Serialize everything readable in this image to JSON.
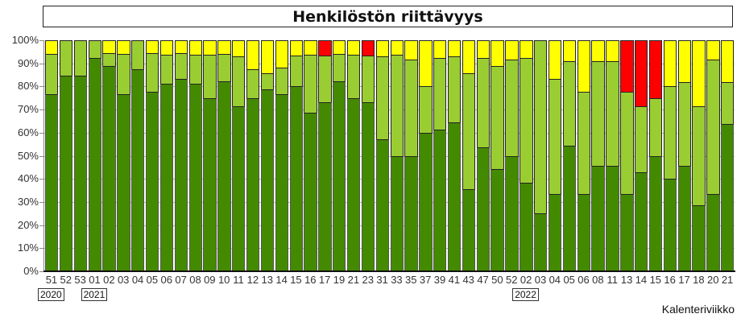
{
  "chart_data": {
    "type": "bar",
    "stacked": true,
    "title": "Henkilöstön riittävyys",
    "xlabel": "Kalenteriviikko",
    "ylabel": "",
    "ylim": [
      0,
      100
    ],
    "yticks": [
      "0%",
      "10%",
      "20%",
      "30%",
      "40%",
      "50%",
      "60%",
      "70%",
      "80%",
      "90%",
      "100%"
    ],
    "categories": [
      "51",
      "52",
      "53",
      "01",
      "02",
      "03",
      "04",
      "05",
      "06",
      "07",
      "08",
      "09",
      "10",
      "11",
      "12",
      "13",
      "14",
      "15",
      "16",
      "17",
      "19",
      "21",
      "23",
      "31",
      "33",
      "35",
      "37",
      "39",
      "41",
      "43",
      "47",
      "50",
      "52",
      "02",
      "03",
      "04",
      "05",
      "06",
      "08",
      "11",
      "13",
      "14",
      "15",
      "16",
      "17",
      "18",
      "20",
      "21"
    ],
    "year_markers": [
      {
        "label": "2020",
        "index": 0
      },
      {
        "label": "2021",
        "index": 3
      },
      {
        "label": "2022",
        "index": 33
      }
    ],
    "series": [
      {
        "name": "dark green",
        "color": "#448a00",
        "values": [
          76.5,
          84.6,
          84.6,
          92.3,
          88.9,
          76.5,
          87.5,
          77.8,
          81.2,
          83.3,
          81.2,
          75,
          82.4,
          71.4,
          75,
          78.6,
          76.5,
          80,
          68.8,
          73.3,
          82.4,
          75,
          73.3,
          57.1,
          50,
          50,
          60,
          61.5,
          64.3,
          35.7,
          53.8,
          44.4,
          50,
          38.5,
          25,
          33.3,
          54.5,
          33.3,
          45.5,
          45.5,
          33.3,
          42.9,
          50,
          40,
          45.5,
          28.6,
          33.3,
          63.6
        ]
      },
      {
        "name": "light green",
        "color": "#9acd32",
        "values": [
          17.6,
          15.4,
          15.4,
          7.7,
          5.5,
          17.6,
          12.5,
          16.6,
          12.6,
          11.1,
          12.6,
          18.8,
          11.7,
          21.5,
          12.5,
          7.1,
          11.7,
          13.3,
          25,
          20,
          11.7,
          18.8,
          20,
          35.8,
          43.8,
          41.7,
          20,
          30.8,
          28.6,
          50,
          38.5,
          44.5,
          41.7,
          53.8,
          75,
          50,
          36.4,
          44.5,
          45.4,
          45.4,
          44.5,
          28.5,
          25,
          40,
          36.3,
          42.8,
          58.4,
          18.2
        ]
      },
      {
        "name": "yellow",
        "color": "#ffff00",
        "values": [
          5.9,
          0,
          0,
          0,
          5.6,
          5.9,
          0,
          5.6,
          6.2,
          5.6,
          6.2,
          6.2,
          5.9,
          7.1,
          12.5,
          14.3,
          11.8,
          6.7,
          6.2,
          0,
          5.9,
          6.2,
          0,
          7.1,
          6.2,
          8.3,
          20,
          7.7,
          7.1,
          14.3,
          7.7,
          11.1,
          8.3,
          7.7,
          0,
          16.7,
          9.1,
          22.2,
          9.1,
          9.1,
          0,
          0,
          0,
          20,
          18.2,
          28.6,
          8.3,
          18.2
        ]
      },
      {
        "name": "red",
        "color": "#ff0000",
        "values": [
          0,
          0,
          0,
          0,
          0,
          0,
          0,
          0,
          0,
          0,
          0,
          0,
          0,
          0,
          0,
          0,
          0,
          0,
          0,
          6.7,
          0,
          0,
          6.7,
          0,
          0,
          0,
          0,
          0,
          0,
          0,
          0,
          0,
          0,
          0,
          0,
          0,
          0,
          0,
          0,
          0,
          22.2,
          28.6,
          25,
          0,
          0,
          0,
          0,
          0
        ]
      }
    ]
  }
}
